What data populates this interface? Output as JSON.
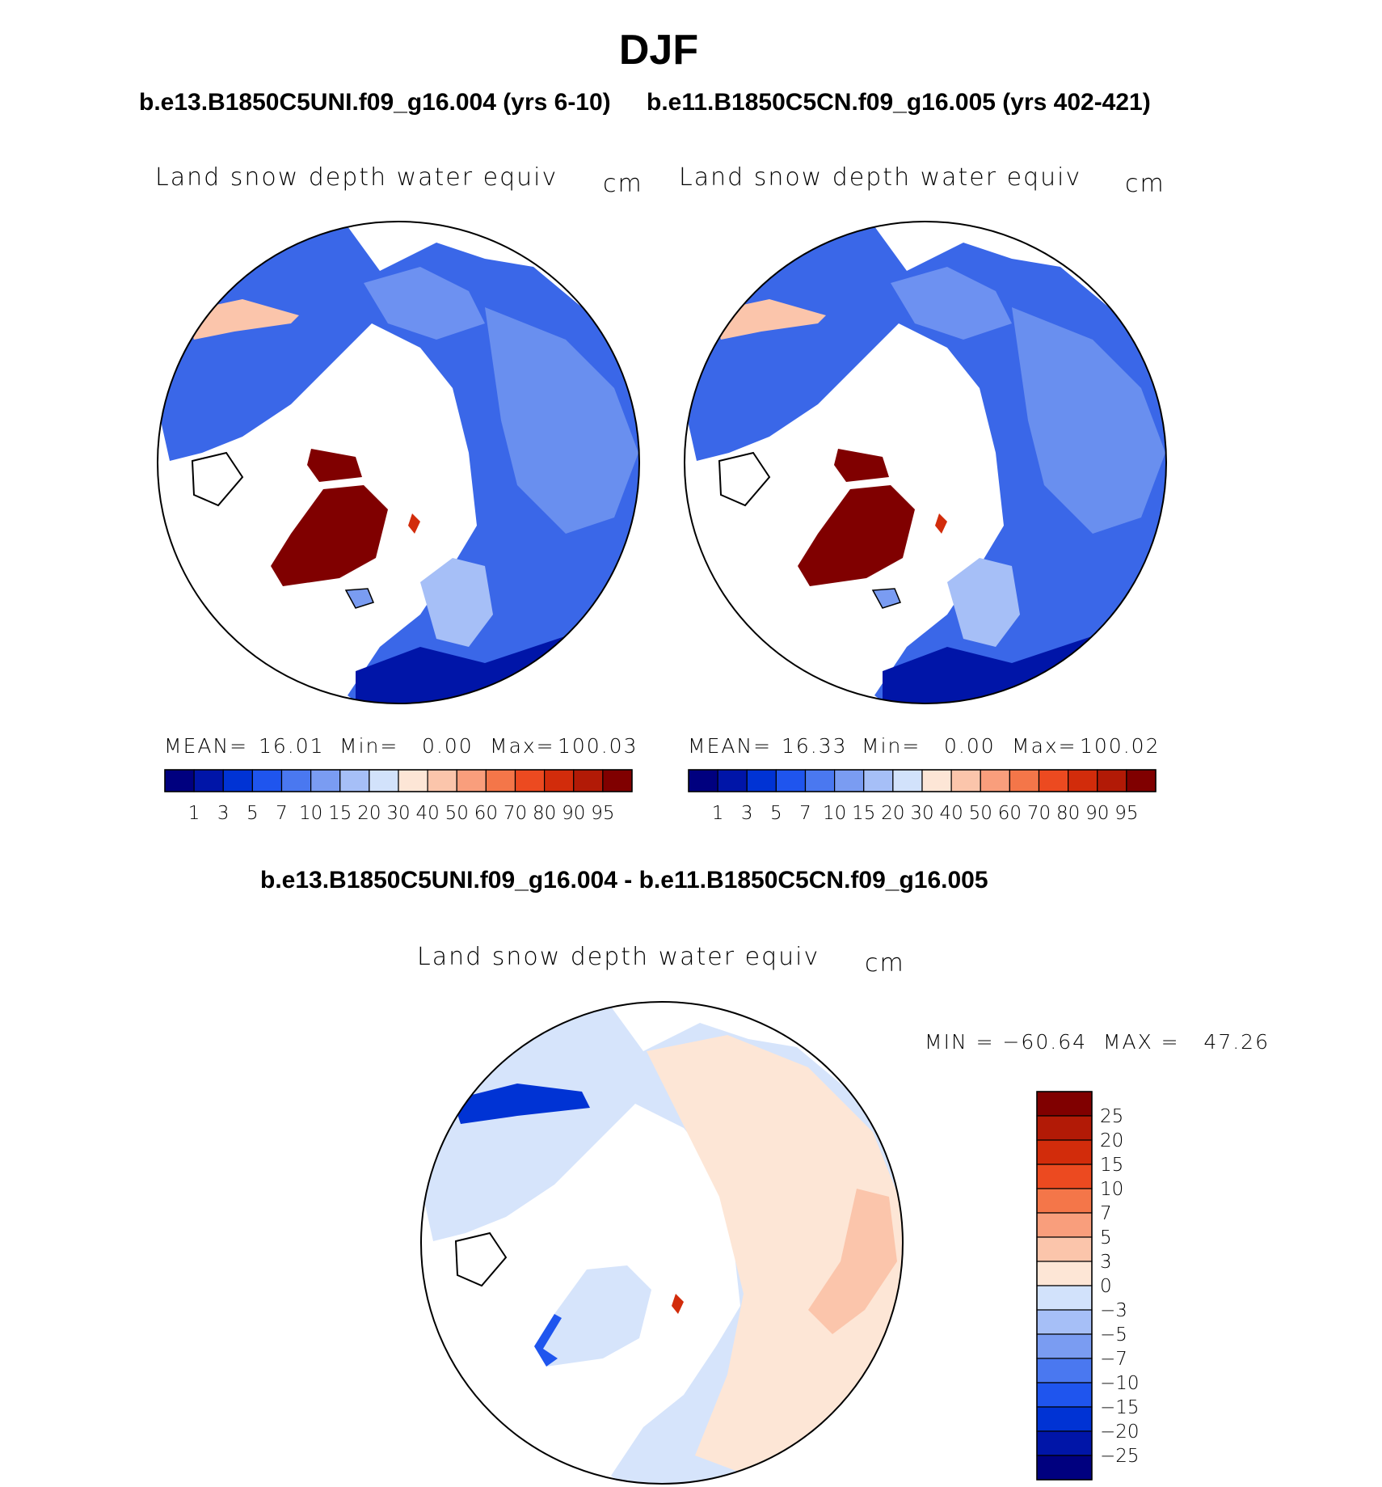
{
  "title": "DJF",
  "panels": [
    {
      "case_label": "b.e13.B1850C5UNI.f09_g16.004 (yrs 6-10)",
      "variable": "Land snow depth water equiv",
      "units": "cm",
      "stats": {
        "mean_label": "MEAN=",
        "mean": "16.01",
        "min_label": "Min=",
        "min": "0.00",
        "max_label": "Max=",
        "max": "100.03"
      },
      "colorbar_labels": [
        "1",
        "3",
        "5",
        "7",
        "10",
        "15",
        "20",
        "30",
        "40",
        "50",
        "60",
        "70",
        "80",
        "90",
        "95"
      ]
    },
    {
      "case_label": "b.e11.B1850C5CN.f09_g16.005 (yrs 402-421)",
      "variable": "Land snow depth water equiv",
      "units": "cm",
      "stats": {
        "mean_label": "MEAN=",
        "mean": "16.33",
        "min_label": "Min=",
        "min": "0.00",
        "max_label": "Max=",
        "max": "100.02"
      },
      "colorbar_labels": [
        "1",
        "3",
        "5",
        "7",
        "10",
        "15",
        "20",
        "30",
        "40",
        "50",
        "60",
        "70",
        "80",
        "90",
        "95"
      ]
    }
  ],
  "difference": {
    "case_label": "b.e13.B1850C5UNI.f09_g16.004 - b.e11.B1850C5CN.f09_g16.005",
    "variable": "Land snow depth water equiv",
    "units": "cm",
    "minmax": "MIN = −60.64  MAX =   47.26",
    "colorbar_labels": [
      "25",
      "20",
      "15",
      "10",
      "7",
      "5",
      "3",
      "0",
      "−3",
      "−5",
      "−7",
      "−10",
      "−15",
      "−20",
      "−25"
    ]
  },
  "colors": {
    "abs_scale": [
      "#00007f",
      "#0015a8",
      "#0033d4",
      "#1f55ee",
      "#4a78f0",
      "#7a9cf2",
      "#a6bff7",
      "#d2e2fb",
      "#fde6d6",
      "#fbc5ab",
      "#f99e7c",
      "#f47649",
      "#ec4a20",
      "#d22c0b",
      "#b21a06",
      "#800000"
    ],
    "diff_scale": [
      "#800000",
      "#b21a06",
      "#d22c0b",
      "#ec4a20",
      "#f47649",
      "#f99e7c",
      "#fbc5ab",
      "#fde6d6",
      "#d2e2fb",
      "#a6bff7",
      "#7a9cf2",
      "#4a78f0",
      "#1f55ee",
      "#0033d4",
      "#0015a8",
      "#00007f"
    ],
    "arctic_base": "#3a67e8",
    "diff_base": "#d6e4fb"
  }
}
